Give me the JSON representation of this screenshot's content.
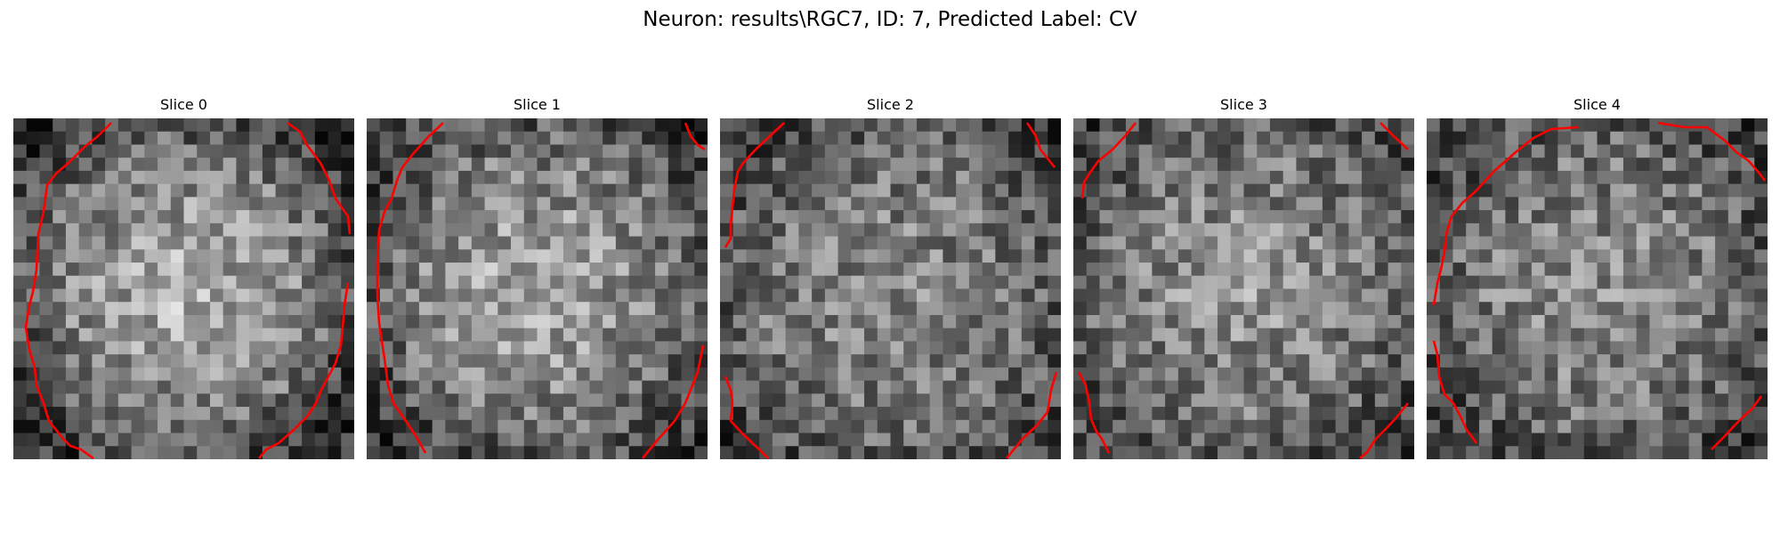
{
  "figure": {
    "title": "Neuron: results\\RGC7, ID: 7, Predicted Label: CV"
  },
  "slices": [
    {
      "label": "Slice 0"
    },
    {
      "label": "Slice 1"
    },
    {
      "label": "Slice 2"
    },
    {
      "label": "Slice 3"
    },
    {
      "label": "Slice 4"
    }
  ],
  "colors": {
    "contour": "#ff0000",
    "background": "#ffffff"
  }
}
